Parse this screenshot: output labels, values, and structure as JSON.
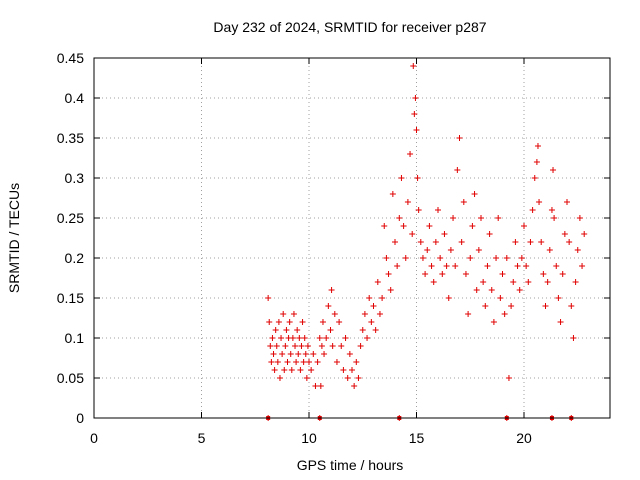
{
  "chart_data": {
    "type": "scatter",
    "title": "Day 232 of 2024, SRMTID for receiver p287",
    "xlabel": "GPS time / hours",
    "ylabel": "SRMTID / TECUs",
    "xlim": [
      0,
      24
    ],
    "ylim": [
      0,
      0.45
    ],
    "xticks": [
      "0",
      "5",
      "10",
      "15",
      "20"
    ],
    "xtick_values": [
      0,
      5,
      10,
      15,
      20
    ],
    "yticks": [
      "0",
      "0.05",
      "0.1",
      "0.15",
      "0.2",
      "0.25",
      "0.3",
      "0.35",
      "0.4",
      "0.45"
    ],
    "ytick_values": [
      0,
      0.05,
      0.1,
      0.15,
      0.2,
      0.25,
      0.3,
      0.35,
      0.4,
      0.45
    ],
    "grid": true,
    "marker": "+",
    "color": "#e00000",
    "series": [
      {
        "name": "SRMTID",
        "points": [
          [
            8.1,
            0.15
          ],
          [
            8.15,
            0.12
          ],
          [
            8.2,
            0.09
          ],
          [
            8.25,
            0.07
          ],
          [
            8.3,
            0.1
          ],
          [
            8.35,
            0.08
          ],
          [
            8.4,
            0.06
          ],
          [
            8.45,
            0.11
          ],
          [
            8.5,
            0.09
          ],
          [
            8.55,
            0.07
          ],
          [
            8.6,
            0.12
          ],
          [
            8.65,
            0.05
          ],
          [
            8.7,
            0.1
          ],
          [
            8.75,
            0.08
          ],
          [
            8.8,
            0.13
          ],
          [
            8.85,
            0.06
          ],
          [
            8.9,
            0.09
          ],
          [
            8.95,
            0.11
          ],
          [
            9.0,
            0.07
          ],
          [
            9.05,
            0.1
          ],
          [
            9.1,
            0.12
          ],
          [
            9.15,
            0.08
          ],
          [
            9.2,
            0.06
          ],
          [
            9.25,
            0.1
          ],
          [
            9.3,
            0.13
          ],
          [
            9.35,
            0.09
          ],
          [
            9.4,
            0.07
          ],
          [
            9.45,
            0.11
          ],
          [
            9.5,
            0.08
          ],
          [
            9.55,
            0.1
          ],
          [
            9.6,
            0.06
          ],
          [
            9.65,
            0.09
          ],
          [
            9.7,
            0.12
          ],
          [
            9.75,
            0.07
          ],
          [
            9.8,
            0.1
          ],
          [
            9.85,
            0.08
          ],
          [
            9.9,
            0.05
          ],
          [
            9.95,
            0.09
          ],
          [
            10.0,
            0.07
          ],
          [
            10.1,
            0.06
          ],
          [
            10.2,
            0.08
          ],
          [
            10.3,
            0.04
          ],
          [
            10.4,
            0.07
          ],
          [
            10.5,
            0.1
          ],
          [
            10.55,
            0.04
          ],
          [
            10.6,
            0.09
          ],
          [
            10.65,
            0.12
          ],
          [
            10.7,
            0.08
          ],
          [
            10.8,
            0.1
          ],
          [
            10.9,
            0.14
          ],
          [
            11.0,
            0.11
          ],
          [
            11.05,
            0.16
          ],
          [
            11.1,
            0.09
          ],
          [
            11.2,
            0.13
          ],
          [
            11.3,
            0.07
          ],
          [
            11.4,
            0.12
          ],
          [
            11.5,
            0.09
          ],
          [
            11.6,
            0.06
          ],
          [
            11.7,
            0.1
          ],
          [
            11.8,
            0.05
          ],
          [
            11.9,
            0.08
          ],
          [
            12.0,
            0.06
          ],
          [
            12.1,
            0.04
          ],
          [
            12.2,
            0.07
          ],
          [
            12.3,
            0.05
          ],
          [
            12.4,
            0.09
          ],
          [
            12.5,
            0.11
          ],
          [
            12.6,
            0.13
          ],
          [
            12.7,
            0.1
          ],
          [
            12.8,
            0.15
          ],
          [
            12.9,
            0.12
          ],
          [
            13.0,
            0.14
          ],
          [
            13.1,
            0.11
          ],
          [
            13.2,
            0.17
          ],
          [
            13.3,
            0.13
          ],
          [
            13.4,
            0.15
          ],
          [
            13.5,
            0.24
          ],
          [
            13.6,
            0.2
          ],
          [
            13.7,
            0.18
          ],
          [
            13.8,
            0.16
          ],
          [
            13.9,
            0.28
          ],
          [
            14.0,
            0.22
          ],
          [
            14.1,
            0.19
          ],
          [
            14.2,
            0.25
          ],
          [
            14.3,
            0.3
          ],
          [
            14.4,
            0.24
          ],
          [
            14.5,
            0.2
          ],
          [
            14.6,
            0.27
          ],
          [
            14.7,
            0.33
          ],
          [
            14.8,
            0.23
          ],
          [
            14.85,
            0.44
          ],
          [
            14.9,
            0.38
          ],
          [
            14.95,
            0.4
          ],
          [
            15.0,
            0.36
          ],
          [
            15.05,
            0.3
          ],
          [
            15.1,
            0.26
          ],
          [
            15.2,
            0.22
          ],
          [
            15.3,
            0.2
          ],
          [
            15.4,
            0.18
          ],
          [
            15.5,
            0.21
          ],
          [
            15.6,
            0.24
          ],
          [
            15.7,
            0.19
          ],
          [
            15.8,
            0.17
          ],
          [
            15.9,
            0.22
          ],
          [
            16.0,
            0.26
          ],
          [
            16.1,
            0.2
          ],
          [
            16.2,
            0.18
          ],
          [
            16.3,
            0.23
          ],
          [
            16.4,
            0.19
          ],
          [
            16.5,
            0.15
          ],
          [
            16.6,
            0.21
          ],
          [
            16.7,
            0.25
          ],
          [
            16.8,
            0.19
          ],
          [
            16.9,
            0.31
          ],
          [
            17.0,
            0.35
          ],
          [
            17.1,
            0.22
          ],
          [
            17.2,
            0.27
          ],
          [
            17.3,
            0.18
          ],
          [
            17.4,
            0.13
          ],
          [
            17.5,
            0.2
          ],
          [
            17.6,
            0.24
          ],
          [
            17.7,
            0.28
          ],
          [
            17.8,
            0.16
          ],
          [
            17.9,
            0.21
          ],
          [
            18.0,
            0.25
          ],
          [
            18.1,
            0.17
          ],
          [
            18.2,
            0.14
          ],
          [
            18.3,
            0.19
          ],
          [
            18.4,
            0.23
          ],
          [
            18.5,
            0.16
          ],
          [
            18.6,
            0.12
          ],
          [
            18.7,
            0.2
          ],
          [
            18.8,
            0.25
          ],
          [
            18.9,
            0.15
          ],
          [
            19.0,
            0.18
          ],
          [
            19.1,
            0.13
          ],
          [
            19.2,
            0.2
          ],
          [
            19.3,
            0.05
          ],
          [
            19.4,
            0.14
          ],
          [
            19.5,
            0.17
          ],
          [
            19.6,
            0.22
          ],
          [
            19.7,
            0.19
          ],
          [
            19.8,
            0.16
          ],
          [
            19.9,
            0.2
          ],
          [
            20.0,
            0.24
          ],
          [
            20.1,
            0.19
          ],
          [
            20.2,
            0.17
          ],
          [
            20.3,
            0.22
          ],
          [
            20.4,
            0.26
          ],
          [
            20.5,
            0.3
          ],
          [
            20.6,
            0.32
          ],
          [
            20.65,
            0.34
          ],
          [
            20.7,
            0.27
          ],
          [
            20.8,
            0.22
          ],
          [
            20.9,
            0.18
          ],
          [
            21.0,
            0.14
          ],
          [
            21.1,
            0.17
          ],
          [
            21.2,
            0.21
          ],
          [
            21.3,
            0.26
          ],
          [
            21.35,
            0.31
          ],
          [
            21.4,
            0.25
          ],
          [
            21.5,
            0.19
          ],
          [
            21.6,
            0.15
          ],
          [
            21.7,
            0.12
          ],
          [
            21.8,
            0.18
          ],
          [
            21.9,
            0.23
          ],
          [
            22.0,
            0.27
          ],
          [
            22.1,
            0.22
          ],
          [
            22.2,
            0.14
          ],
          [
            22.3,
            0.1
          ],
          [
            22.4,
            0.17
          ],
          [
            22.5,
            0.21
          ],
          [
            22.6,
            0.25
          ],
          [
            22.7,
            0.19
          ],
          [
            22.8,
            0.23
          ]
        ],
        "zero_markers": [
          8.1,
          10.5,
          14.2,
          19.2,
          21.3,
          22.2
        ]
      }
    ]
  }
}
